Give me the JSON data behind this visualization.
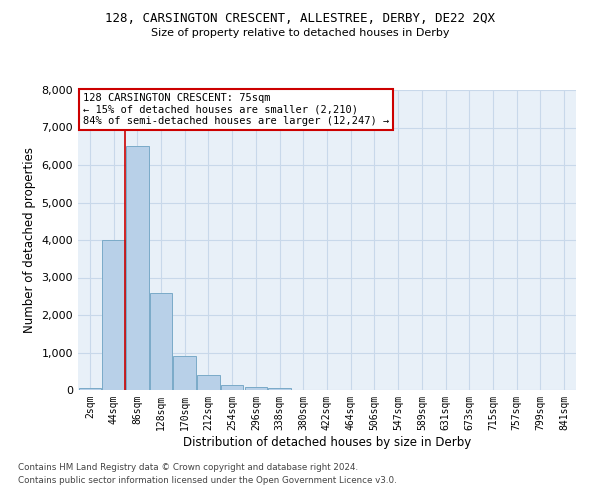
{
  "title1": "128, CARSINGTON CRESCENT, ALLESTREE, DERBY, DE22 2QX",
  "title2": "Size of property relative to detached houses in Derby",
  "xlabel": "Distribution of detached houses by size in Derby",
  "ylabel": "Number of detached properties",
  "categories": [
    "2sqm",
    "44sqm",
    "86sqm",
    "128sqm",
    "170sqm",
    "212sqm",
    "254sqm",
    "296sqm",
    "338sqm",
    "380sqm",
    "422sqm",
    "464sqm",
    "506sqm",
    "547sqm",
    "589sqm",
    "631sqm",
    "673sqm",
    "715sqm",
    "757sqm",
    "799sqm",
    "841sqm"
  ],
  "bar_values": [
    50,
    4000,
    6500,
    2600,
    900,
    400,
    130,
    90,
    50,
    0,
    0,
    0,
    0,
    0,
    0,
    0,
    0,
    0,
    0,
    0,
    0
  ],
  "bar_color": "#b8d0e8",
  "bar_edge_color": "#7aaac8",
  "grid_color": "#c8d8ea",
  "background_color": "#e8f0f8",
  "vline_color": "#cc0000",
  "vline_position": 1.5,
  "annotation_lines": [
    "128 CARSINGTON CRESCENT: 75sqm",
    "← 15% of detached houses are smaller (2,210)",
    "84% of semi-detached houses are larger (12,247) →"
  ],
  "annotation_box_color": "#cc0000",
  "ylim": [
    0,
    8000
  ],
  "yticks": [
    0,
    1000,
    2000,
    3000,
    4000,
    5000,
    6000,
    7000,
    8000
  ],
  "footer1": "Contains HM Land Registry data © Crown copyright and database right 2024.",
  "footer2": "Contains public sector information licensed under the Open Government Licence v3.0."
}
